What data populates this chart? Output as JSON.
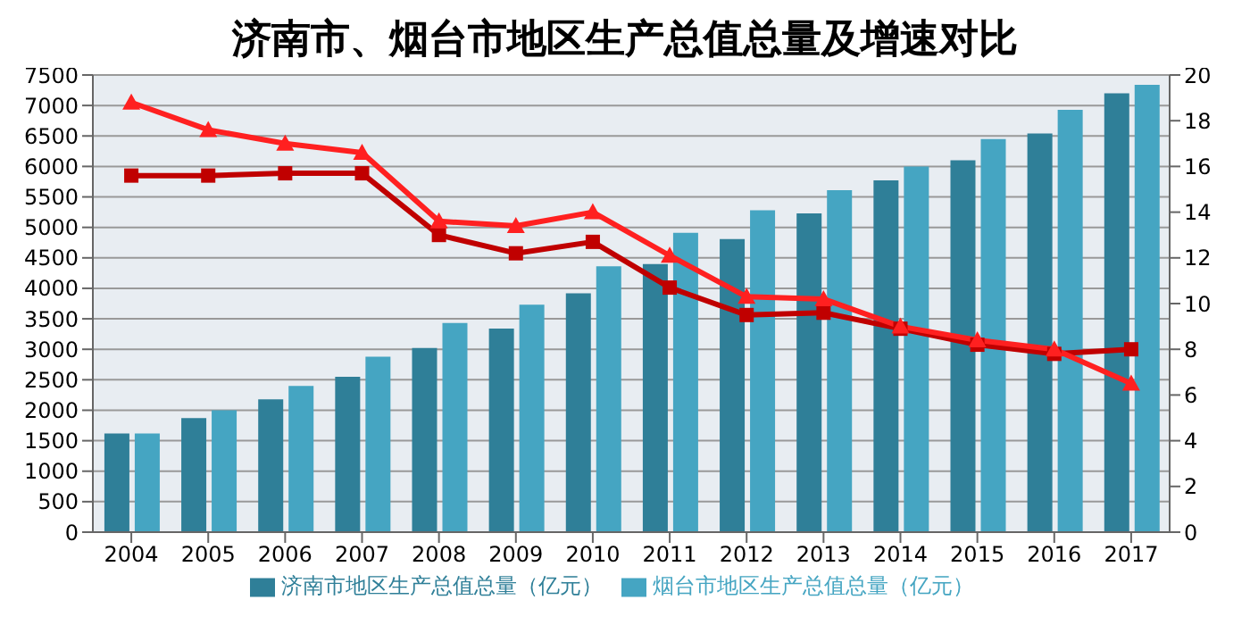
{
  "chart_data": {
    "type": "bar",
    "title": "济南市、烟台市地区生产总值总量及增速对比",
    "categories": [
      "2004",
      "2005",
      "2006",
      "2007",
      "2008",
      "2009",
      "2010",
      "2011",
      "2012",
      "2013",
      "2014",
      "2015",
      "2016",
      "2017"
    ],
    "series": [
      {
        "name": "济南市地区生产总值总量（亿元）",
        "color": "#2f7f98",
        "values": [
          1620,
          1870,
          2180,
          2550,
          3020,
          3340,
          3920,
          4400,
          4810,
          5230,
          5770,
          6100,
          6540,
          7200
        ]
      },
      {
        "name": "烟台市地区生产总值总量（亿元）",
        "color": "#45a5c2",
        "values": [
          1620,
          2000,
          2400,
          2880,
          3430,
          3730,
          4360,
          4910,
          5280,
          5610,
          6000,
          6450,
          6930,
          7340
        ]
      },
      {
        "type": "line",
        "axis": "y2",
        "marker": "square",
        "color": "#c00000",
        "values": [
          15.6,
          15.6,
          15.7,
          15.7,
          13.0,
          12.2,
          12.7,
          10.7,
          9.5,
          9.6,
          8.9,
          8.2,
          7.8,
          8.0
        ]
      },
      {
        "type": "line",
        "axis": "y2",
        "marker": "triangle",
        "color": "#ff2020",
        "values": [
          18.8,
          17.6,
          17.0,
          16.6,
          13.6,
          13.4,
          14.0,
          12.1,
          10.3,
          10.2,
          9.0,
          8.4,
          8.0,
          6.5
        ]
      }
    ],
    "ylim": [
      0,
      7500
    ],
    "yticks": [
      0,
      500,
      1000,
      1500,
      2000,
      2500,
      3000,
      3500,
      4000,
      4500,
      5000,
      5500,
      6000,
      6500,
      7000,
      7500
    ],
    "y2lim": [
      0,
      20
    ],
    "y2ticks": [
      0,
      2,
      4,
      6,
      8,
      10,
      12,
      14,
      16,
      18,
      20
    ],
    "grid": "y",
    "legend": "bottom"
  }
}
